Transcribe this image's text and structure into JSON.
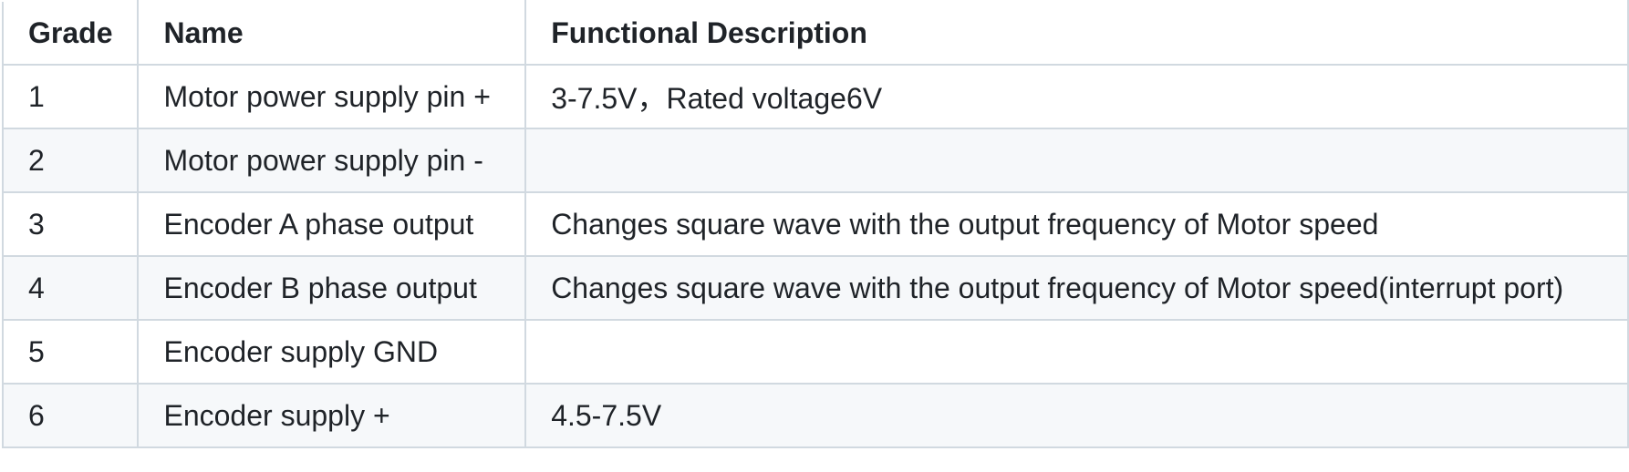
{
  "table": {
    "headers": {
      "grade": "Grade",
      "name": "Name",
      "description": "Functional Description"
    },
    "rows": [
      {
        "grade": "1",
        "name": "Motor power supply pin +",
        "description": "3-7.5V，Rated voltage6V"
      },
      {
        "grade": "2",
        "name": "Motor power supply pin -",
        "description": ""
      },
      {
        "grade": "3",
        "name": "Encoder A phase output",
        "description": "Changes square wave with the output frequency of Motor speed"
      },
      {
        "grade": "4",
        "name": "Encoder B phase output",
        "description": "Changes square wave with the output frequency of Motor speed(interrupt port)"
      },
      {
        "grade": "5",
        "name": "Encoder supply GND",
        "description": ""
      },
      {
        "grade": "6",
        "name": "Encoder supply +",
        "description": "4.5-7.5V"
      }
    ]
  }
}
